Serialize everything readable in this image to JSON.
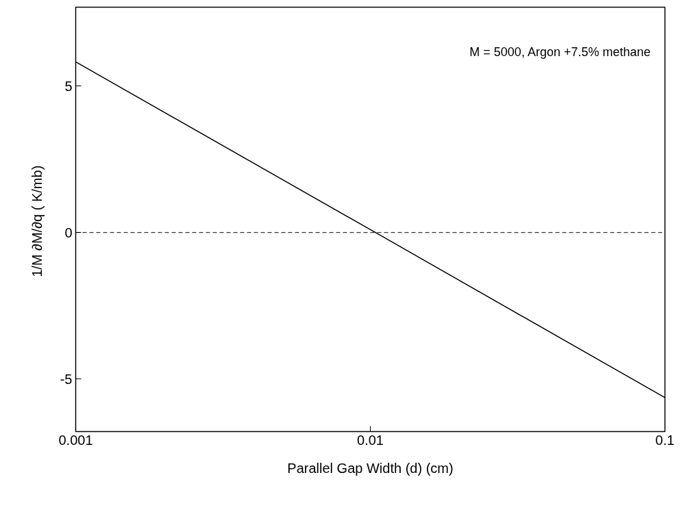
{
  "chart_data": {
    "type": "line",
    "xlabel": "Parallel Gap Width (d) (cm)",
    "ylabel": "1/M ∂M/∂q  ( K/mb)",
    "annotations": [
      "M = 5000, Argon +7.5% methane"
    ],
    "x": [
      0.001,
      0.01,
      0.1
    ],
    "series": [
      {
        "color": "#000000",
        "values": [
          5.83,
          0.1,
          -5.64
        ]
      }
    ],
    "log": "x",
    "xlim": [
      0.001,
      0.1
    ],
    "xticks": [
      0.001,
      0.01,
      0.1
    ],
    "ylim": [
      -6.8,
      7.7
    ],
    "yticks": [
      -5,
      0,
      5
    ],
    "ref_lines": [
      {
        "axis": "y",
        "value": 0,
        "color": "#000000",
        "line_style": "dashed"
      }
    ],
    "grid": false,
    "marker": "none",
    "line_style": "solid"
  }
}
